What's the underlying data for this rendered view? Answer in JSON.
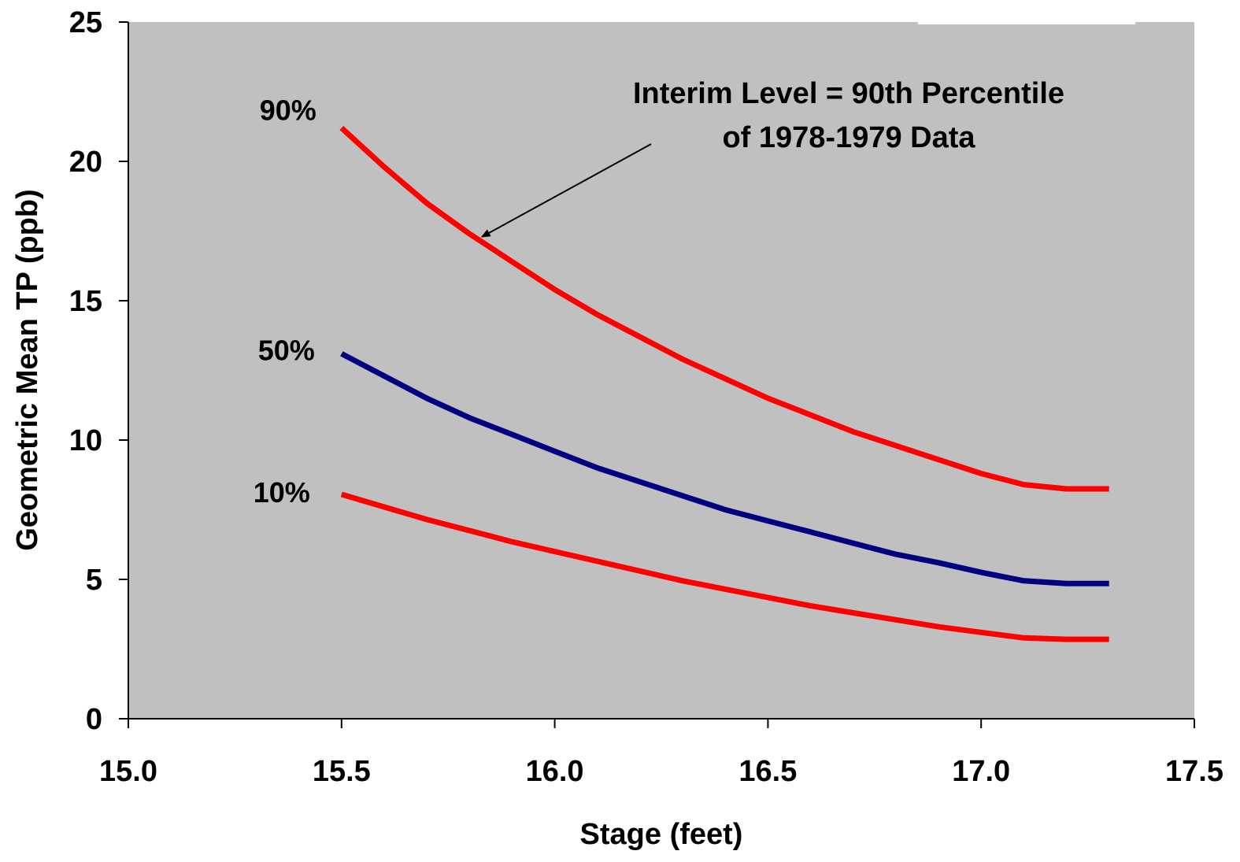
{
  "chart_data": {
    "type": "line",
    "xlabel": "Stage (feet)",
    "ylabel": "Geometric Mean TP (ppb)",
    "xlim": [
      15.0,
      17.5
    ],
    "ylim": [
      0,
      25
    ],
    "xticks": [
      "15.0",
      "15.5",
      "16.0",
      "16.5",
      "17.0",
      "17.5"
    ],
    "yticks": [
      "0",
      "5",
      "10",
      "15",
      "20",
      "25"
    ],
    "grid": false,
    "plot_background": "#c0c0c0",
    "series": [
      {
        "name": "90%",
        "color": "#ff0000",
        "x": [
          15.5,
          15.6,
          15.7,
          15.8,
          15.9,
          16.0,
          16.1,
          16.2,
          16.3,
          16.4,
          16.5,
          16.6,
          16.7,
          16.8,
          16.9,
          17.0,
          17.1,
          17.2,
          17.3
        ],
        "y": [
          21.2,
          19.8,
          18.5,
          17.4,
          16.4,
          15.4,
          14.5,
          13.7,
          12.9,
          12.2,
          11.5,
          10.9,
          10.3,
          9.8,
          9.3,
          8.8,
          8.4,
          8.25,
          8.25
        ]
      },
      {
        "name": "50%",
        "color": "#000080",
        "x": [
          15.5,
          15.6,
          15.7,
          15.8,
          15.9,
          16.0,
          16.1,
          16.2,
          16.3,
          16.4,
          16.5,
          16.6,
          16.7,
          16.8,
          16.9,
          17.0,
          17.1,
          17.2,
          17.3
        ],
        "y": [
          13.1,
          12.3,
          11.5,
          10.8,
          10.2,
          9.6,
          9.0,
          8.5,
          8.0,
          7.5,
          7.1,
          6.7,
          6.3,
          5.9,
          5.6,
          5.25,
          4.95,
          4.85,
          4.85
        ]
      },
      {
        "name": "10%",
        "color": "#ff0000",
        "x": [
          15.5,
          15.6,
          15.7,
          15.8,
          15.9,
          16.0,
          16.1,
          16.2,
          16.3,
          16.4,
          16.5,
          16.6,
          16.7,
          16.8,
          16.9,
          17.0,
          17.1,
          17.2,
          17.3
        ],
        "y": [
          8.05,
          7.6,
          7.15,
          6.75,
          6.35,
          6.0,
          5.65,
          5.3,
          4.95,
          4.65,
          4.35,
          4.05,
          3.8,
          3.55,
          3.3,
          3.1,
          2.9,
          2.85,
          2.85
        ]
      }
    ],
    "annotation": {
      "lines": [
        "Interim Level =  90th Percentile",
        "of 1978-1979 Data"
      ],
      "points_to": {
        "series": "90%",
        "x": 15.83,
        "y": 17.3
      }
    }
  }
}
